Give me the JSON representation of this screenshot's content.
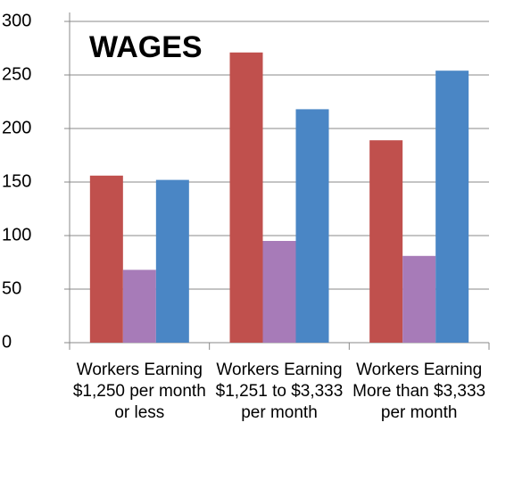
{
  "chart_data": {
    "type": "bar",
    "title": "WAGES",
    "categories": [
      "Workers Earning $1,250 per month or less",
      "Workers Earning $1,251 to $3,333 per month",
      "Workers Earning More than $3,333 per month"
    ],
    "series": [
      {
        "color": "#c0504d",
        "values": [
          156,
          271,
          189
        ]
      },
      {
        "color": "#a77bb8",
        "values": [
          68,
          95,
          81
        ]
      },
      {
        "color": "#4a86c5",
        "values": [
          152,
          218,
          254
        ]
      }
    ],
    "ylim": [
      0,
      300
    ],
    "yticks": [
      0,
      50,
      100,
      150,
      200,
      250,
      300
    ],
    "grid": true
  }
}
